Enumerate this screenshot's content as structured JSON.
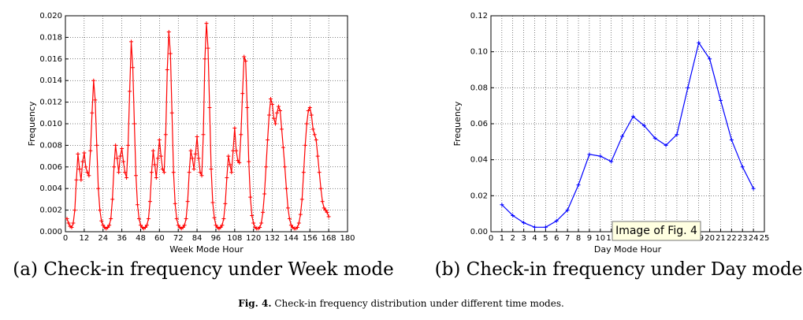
{
  "chart_data": [
    {
      "type": "line",
      "title": "(a) Check-in frequency under Week mode",
      "xlabel": "Week Mode Hour",
      "ylabel": "Frequency",
      "x": [
        1,
        2,
        3,
        4,
        5,
        6,
        7,
        8,
        9,
        10,
        11,
        12,
        13,
        14,
        15,
        16,
        17,
        18,
        19,
        20,
        21,
        22,
        23,
        24,
        25,
        26,
        27,
        28,
        29,
        30,
        31,
        32,
        33,
        34,
        35,
        36,
        37,
        38,
        39,
        40,
        41,
        42,
        43,
        44,
        45,
        46,
        47,
        48,
        49,
        50,
        51,
        52,
        53,
        54,
        55,
        56,
        57,
        58,
        59,
        60,
        61,
        62,
        63,
        64,
        65,
        66,
        67,
        68,
        69,
        70,
        71,
        72,
        73,
        74,
        75,
        76,
        77,
        78,
        79,
        80,
        81,
        82,
        83,
        84,
        85,
        86,
        87,
        88,
        89,
        90,
        91,
        92,
        93,
        94,
        95,
        96,
        97,
        98,
        99,
        100,
        101,
        102,
        103,
        104,
        105,
        106,
        107,
        108,
        109,
        110,
        111,
        112,
        113,
        114,
        115,
        116,
        117,
        118,
        119,
        120,
        121,
        122,
        123,
        124,
        125,
        126,
        127,
        128,
        129,
        130,
        131,
        132,
        133,
        134,
        135,
        136,
        137,
        138,
        139,
        140,
        141,
        142,
        143,
        144,
        145,
        146,
        147,
        148,
        149,
        150,
        151,
        152,
        153,
        154,
        155,
        156,
        157,
        158,
        159,
        160,
        161,
        162,
        163,
        164,
        165,
        166,
        167,
        168
      ],
      "series": [
        {
          "color": "#ff0000",
          "values": [
            0.0012,
            0.0008,
            0.0005,
            0.0004,
            0.0008,
            0.002,
            0.0048,
            0.0072,
            0.0058,
            0.0048,
            0.0065,
            0.0073,
            0.006,
            0.0055,
            0.0052,
            0.0075,
            0.011,
            0.014,
            0.0122,
            0.008,
            0.004,
            0.002,
            0.001,
            0.0006,
            0.0004,
            0.0003,
            0.0004,
            0.0006,
            0.0012,
            0.003,
            0.006,
            0.008,
            0.0068,
            0.0055,
            0.007,
            0.0077,
            0.0065,
            0.0055,
            0.005,
            0.008,
            0.013,
            0.0176,
            0.0152,
            0.01,
            0.0052,
            0.0025,
            0.0012,
            0.0006,
            0.0004,
            0.0003,
            0.0004,
            0.0006,
            0.0012,
            0.0028,
            0.0055,
            0.0075,
            0.0062,
            0.005,
            0.0068,
            0.0085,
            0.007,
            0.0058,
            0.0055,
            0.009,
            0.015,
            0.0185,
            0.0165,
            0.011,
            0.0055,
            0.0026,
            0.0012,
            0.0006,
            0.0004,
            0.0003,
            0.0004,
            0.0006,
            0.0012,
            0.0028,
            0.0055,
            0.0075,
            0.0068,
            0.0058,
            0.0072,
            0.0088,
            0.0068,
            0.0055,
            0.0052,
            0.009,
            0.016,
            0.0193,
            0.017,
            0.0115,
            0.0058,
            0.0027,
            0.0013,
            0.0006,
            0.0004,
            0.0003,
            0.0004,
            0.0006,
            0.0012,
            0.0026,
            0.005,
            0.007,
            0.0062,
            0.0055,
            0.0075,
            0.0096,
            0.0075,
            0.0066,
            0.0064,
            0.009,
            0.0128,
            0.0162,
            0.0158,
            0.0115,
            0.0065,
            0.0032,
            0.0015,
            0.0008,
            0.0004,
            0.0003,
            0.0003,
            0.0004,
            0.0008,
            0.0018,
            0.0035,
            0.006,
            0.0085,
            0.0108,
            0.0123,
            0.0118,
            0.0105,
            0.01,
            0.011,
            0.0116,
            0.0112,
            0.0095,
            0.0078,
            0.006,
            0.004,
            0.0022,
            0.0012,
            0.0006,
            0.0004,
            0.0003,
            0.0003,
            0.0004,
            0.0008,
            0.0016,
            0.003,
            0.0055,
            0.008,
            0.01,
            0.0112,
            0.0115,
            0.0108,
            0.0095,
            0.009,
            0.0085,
            0.007,
            0.0055,
            0.004,
            0.0028,
            0.0022,
            0.002,
            0.0018,
            0.0014
          ]
        }
      ],
      "xlim": [
        0,
        180
      ],
      "xticks": [
        0,
        12,
        24,
        36,
        48,
        60,
        72,
        84,
        96,
        108,
        120,
        132,
        144,
        156,
        168,
        180
      ],
      "ylim": [
        0,
        0.02
      ],
      "yticks": [
        {
          "value": 0,
          "label": "0.000"
        },
        {
          "value": 0.002,
          "label": "0.002"
        },
        {
          "value": 0.004,
          "label": "0.004"
        },
        {
          "value": 0.006,
          "label": "0.006"
        },
        {
          "value": 0.008,
          "label": "0.008"
        },
        {
          "value": 0.01,
          "label": "0.010"
        },
        {
          "value": 0.012,
          "label": "0.012"
        },
        {
          "value": 0.014,
          "label": "0.014"
        },
        {
          "value": 0.016,
          "label": "0.016"
        },
        {
          "value": 0.018,
          "label": "0.018"
        },
        {
          "value": 0.02,
          "label": "0.020"
        }
      ],
      "grid": true
    },
    {
      "type": "line",
      "title": "(b) Check-in frequency under Day mode",
      "xlabel": "Day Mode Hour",
      "ylabel": "Frequency",
      "x": [
        1,
        2,
        3,
        4,
        5,
        6,
        7,
        8,
        9,
        10,
        11,
        12,
        13,
        14,
        15,
        16,
        17,
        18,
        19,
        20,
        21,
        22,
        23,
        24
      ],
      "series": [
        {
          "color": "#0000ff",
          "values": [
            0.015,
            0.009,
            0.005,
            0.0025,
            0.0025,
            0.006,
            0.012,
            0.026,
            0.043,
            0.042,
            0.039,
            0.053,
            0.064,
            0.059,
            0.052,
            0.048,
            0.054,
            0.08,
            0.105,
            0.096,
            0.073,
            0.051,
            0.036,
            0.024
          ]
        }
      ],
      "xlim": [
        0,
        25
      ],
      "xticks": [
        0,
        1,
        2,
        3,
        4,
        5,
        6,
        7,
        8,
        9,
        10,
        11,
        12,
        13,
        14,
        15,
        16,
        17,
        18,
        19,
        20,
        21,
        22,
        23,
        24,
        25
      ],
      "ylim": [
        0,
        0.12
      ],
      "yticks": [
        {
          "value": 0,
          "label": "0.00"
        },
        {
          "value": 0.02,
          "label": "0.02"
        },
        {
          "value": 0.04,
          "label": "0.04"
        },
        {
          "value": 0.06,
          "label": "0.06"
        },
        {
          "value": 0.08,
          "label": "0.08"
        },
        {
          "value": 0.1,
          "label": "0.10"
        },
        {
          "value": 0.12,
          "label": "0.12"
        }
      ],
      "grid": true
    }
  ],
  "caption": {
    "label": "Fig. 4.",
    "text": "Check-in frequency distribution under different time modes."
  },
  "tooltip": "Image of Fig. 4"
}
